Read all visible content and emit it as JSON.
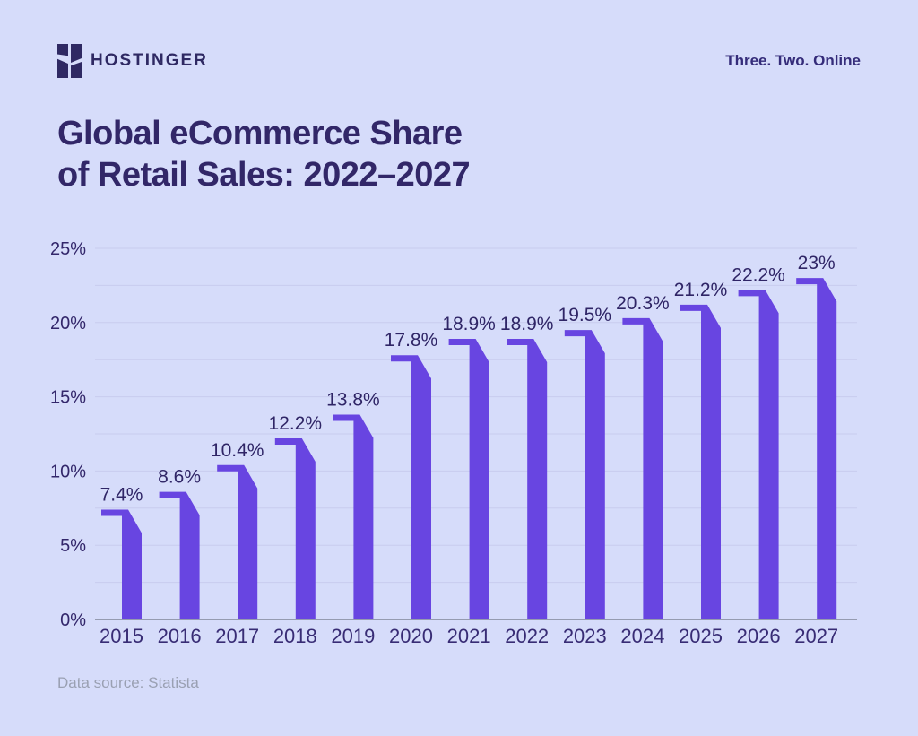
{
  "header": {
    "brand": "HOSTINGER",
    "logo_icon": "hostinger-h-logo",
    "tagline": "Three. Two. Online"
  },
  "title": {
    "line1": "Global eCommerce Share",
    "line2": "of Retail Sales: 2022–2027"
  },
  "source": "Data source: Statista",
  "colors": {
    "background": "#d6dcfa",
    "bar": "#6845e1",
    "gridline": "#c8ccee",
    "axis_line": "#959bb0",
    "text_dark": "#33276b",
    "logo": "#2f2963"
  },
  "chart_data": {
    "type": "bar",
    "title": "Global eCommerce Share of Retail Sales: 2022–2027",
    "categories": [
      "2015",
      "2016",
      "2017",
      "2018",
      "2019",
      "2020",
      "2021",
      "2022",
      "2023",
      "2024",
      "2025",
      "2026",
      "2027"
    ],
    "values": [
      7.4,
      8.6,
      10.4,
      12.2,
      13.8,
      17.8,
      18.9,
      18.9,
      19.5,
      20.3,
      21.2,
      22.2,
      23
    ],
    "labels": [
      "7.4%",
      "8.6%",
      "10.4%",
      "12.2%",
      "13.8%",
      "17.8%",
      "18.9%",
      "18.9%",
      "19.5%",
      "20.3%",
      "21.2%",
      "22.2%",
      "23%"
    ],
    "xlabel": "",
    "ylabel": "",
    "ylim": [
      0,
      25
    ],
    "y_tick_labels": [
      "0%",
      "5%",
      "10%",
      "15%",
      "20%",
      "25%"
    ],
    "major_step": 5,
    "grid_step": 2.5,
    "grid": true,
    "legend": false,
    "source": "Data source: Statista"
  }
}
